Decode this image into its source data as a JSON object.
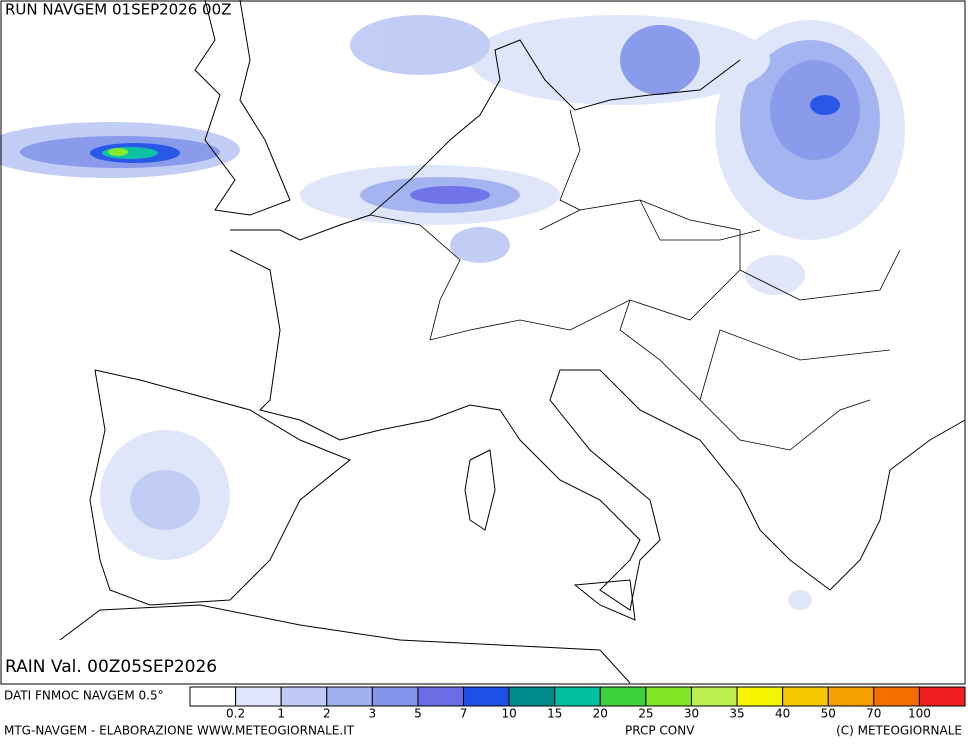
{
  "header": {
    "run": "RUN NAVGEM 01SEP2026 00Z"
  },
  "map": {
    "valid": "RAIN Val. 00Z05SEP2026"
  },
  "legend": {
    "source": "DATI FNMOC NAVGEM 0.5°",
    "colors": [
      "#ffffff",
      "#dfe5fa",
      "#bfcbf6",
      "#a0b1f1",
      "#8496ec",
      "#6a6de6",
      "#1e50e8",
      "#008c8c",
      "#00bea0",
      "#3cd23c",
      "#82e628",
      "#beef50",
      "#f5f500",
      "#f5c800",
      "#f5a000",
      "#f56e00",
      "#f01e1e"
    ],
    "labels": [
      "0.2",
      "1",
      "2",
      "3",
      "5",
      "7",
      "10",
      "15",
      "20",
      "25",
      "30",
      "35",
      "40",
      "50",
      "70",
      "100"
    ]
  },
  "footer": {
    "credit": "MTG-NAVGEM - ELABORAZIONE WWW.METEOGIORNALE.IT",
    "product": "PRCP CONV",
    "copyright": "(C) METEOGIORNALE"
  }
}
